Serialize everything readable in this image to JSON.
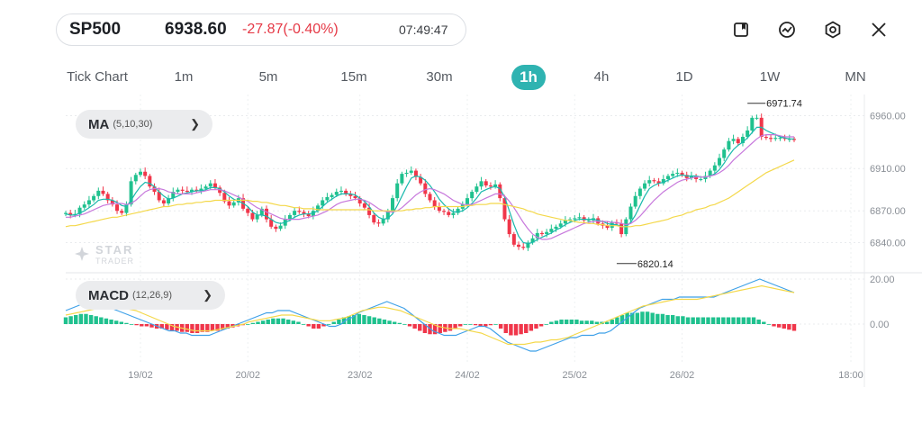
{
  "header": {
    "symbol": "SP500",
    "price": "6938.60",
    "change": "-27.87(-0.40%)",
    "time": "07:49:47"
  },
  "toolbar": {
    "icons": [
      "bookmark-icon",
      "trend-chart-icon",
      "settings-icon",
      "close-icon"
    ]
  },
  "timeframes": [
    "Tick Chart",
    "1m",
    "5m",
    "15m",
    "30m",
    "1h",
    "4h",
    "1D",
    "1W",
    "MN"
  ],
  "active_timeframe": "1h",
  "watermark": {
    "line1": "STAR",
    "line2": "TRADER"
  },
  "colors": {
    "accent": "#2fb3b1",
    "up": "#1fc18e",
    "down": "#f0364a"
  },
  "chart_data": [
    {
      "type": "candlestick",
      "indicator_label": "MA",
      "indicator_params": "(5,10,30)",
      "y_ticks": [
        "6960.00",
        "6910.00",
        "6870.00",
        "6840.00"
      ],
      "y_tick_values": [
        6960,
        6910,
        6870,
        6840
      ],
      "ylim": [
        6814,
        6980
      ],
      "x_tick_labels": [
        "19/02",
        "20/02",
        "23/02",
        "24/02",
        "25/02",
        "26/02",
        "18:00"
      ],
      "max_annotation": "6971.74",
      "min_annotation": "6820.14",
      "ma_colors": [
        "#19b9ad",
        "#c778dc",
        "#f4d84a"
      ],
      "closes": [
        6868,
        6866,
        6867,
        6873,
        6876,
        6880,
        6884,
        6889,
        6886,
        6880,
        6876,
        6870,
        6868,
        6876,
        6898,
        6904,
        6907,
        6903,
        6893,
        6888,
        6880,
        6877,
        6882,
        6888,
        6890,
        6889,
        6888,
        6890,
        6889,
        6891,
        6893,
        6896,
        6892,
        6887,
        6879,
        6875,
        6878,
        6882,
        6872,
        6868,
        6862,
        6866,
        6872,
        6862,
        6855,
        6853,
        6856,
        6862,
        6866,
        6870,
        6869,
        6867,
        6865,
        6870,
        6875,
        6880,
        6883,
        6885,
        6888,
        6889,
        6886,
        6884,
        6882,
        6877,
        6873,
        6866,
        6859,
        6858,
        6862,
        6870,
        6882,
        6896,
        6905,
        6906,
        6908,
        6902,
        6896,
        6886,
        6880,
        6874,
        6870,
        6869,
        6866,
        6868,
        6872,
        6876,
        6882,
        6888,
        6893,
        6898,
        6894,
        6893,
        6895,
        6882,
        6862,
        6848,
        6838,
        6836,
        6835,
        6840,
        6844,
        6849,
        6848,
        6850,
        6853,
        6855,
        6858,
        6861,
        6862,
        6863,
        6864,
        6861,
        6861,
        6863,
        6858,
        6856,
        6854,
        6859,
        6858,
        6848,
        6862,
        6874,
        6884,
        6891,
        6896,
        6899,
        6898,
        6896,
        6900,
        6903,
        6905,
        6906,
        6904,
        6901,
        6903,
        6900,
        6900,
        6903,
        6908,
        6913,
        6920,
        6928,
        6936,
        6938,
        6934,
        6940,
        6946,
        6958,
        6958,
        6940,
        6939,
        6938,
        6939,
        6939,
        6938,
        6938,
        6937
      ],
      "ma5": [
        6867,
        6866,
        6866,
        6868,
        6870,
        6873,
        6876,
        6880,
        6881,
        6881,
        6880,
        6878,
        6875,
        6874,
        6880,
        6887,
        6893,
        6897,
        6896,
        6893,
        6888,
        6884,
        6881,
        6882,
        6884,
        6886,
        6887,
        6888,
        6889,
        6889,
        6890,
        6892,
        6892,
        6891,
        6888,
        6884,
        6881,
        6879,
        6877,
        6874,
        6869,
        6866,
        6866,
        6865,
        6862,
        6859,
        6858,
        6859,
        6861,
        6864,
        6866,
        6867,
        6867,
        6868,
        6870,
        6874,
        6878,
        6881,
        6884,
        6886,
        6886,
        6886,
        6885,
        6882,
        6879,
        6874,
        6868,
        6864,
        6862,
        6863,
        6867,
        6875,
        6884,
        6893,
        6901,
        6903,
        6902,
        6899,
        6894,
        6888,
        6881,
        6876,
        6872,
        6869,
        6869,
        6870,
        6873,
        6877,
        6882,
        6888,
        6890,
        6892,
        6893,
        6891,
        6883,
        6870,
        6857,
        6846,
        6840,
        6839,
        6840,
        6843,
        6845,
        6847,
        6849,
        6852,
        6854,
        6857,
        6859,
        6861,
        6862,
        6862,
        6862,
        6862,
        6861,
        6860,
        6858,
        6857,
        6857,
        6855,
        6855,
        6859,
        6866,
        6875,
        6884,
        6891,
        6894,
        6896,
        6897,
        6899,
        6901,
        6903,
        6904,
        6903,
        6903,
        6903,
        6902,
        6902,
        6903,
        6905,
        6909,
        6915,
        6922,
        6928,
        6932,
        6935,
        6939,
        6944,
        6949,
        6949,
        6946,
        6944,
        6942,
        6940,
        6939,
        6938,
        6938
      ],
      "ma10": [
        6864,
        6864,
        6865,
        6866,
        6867,
        6869,
        6871,
        6873,
        6875,
        6876,
        6877,
        6877,
        6877,
        6876,
        6877,
        6880,
        6884,
        6888,
        6890,
        6891,
        6891,
        6890,
        6888,
        6887,
        6886,
        6886,
        6886,
        6886,
        6887,
        6888,
        6889,
        6890,
        6890,
        6890,
        6889,
        6887,
        6885,
        6883,
        6881,
        6879,
        6876,
        6873,
        6871,
        6869,
        6867,
        6865,
        6863,
        6862,
        6862,
        6862,
        6862,
        6863,
        6864,
        6865,
        6866,
        6868,
        6870,
        6873,
        6876,
        6878,
        6879,
        6880,
        6881,
        6881,
        6880,
        6878,
        6875,
        6872,
        6870,
        6869,
        6869,
        6870,
        6873,
        6877,
        6881,
        6885,
        6888,
        6890,
        6891,
        6890,
        6888,
        6886,
        6883,
        6880,
        6878,
        6876,
        6876,
        6876,
        6878,
        6880,
        6882,
        6884,
        6886,
        6886,
        6884,
        6879,
        6873,
        6866,
        6859,
        6853,
        6848,
        6845,
        6843,
        6843,
        6844,
        6846,
        6848,
        6850,
        6852,
        6854,
        6856,
        6858,
        6859,
        6860,
        6860,
        6860,
        6860,
        6859,
        6859,
        6858,
        6857,
        6858,
        6861,
        6865,
        6870,
        6875,
        6880,
        6884,
        6888,
        6891,
        6894,
        6897,
        6899,
        6900,
        6901,
        6902,
        6902,
        6902,
        6903,
        6904,
        6906,
        6909,
        6913,
        6918,
        6922,
        6926,
        6930,
        6934,
        6938,
        6941,
        6942,
        6942,
        6942,
        6941,
        6940,
        6940,
        6940
      ],
      "ma30": [
        6855,
        6856,
        6856,
        6857,
        6858,
        6859,
        6860,
        6861,
        6862,
        6863,
        6864,
        6864,
        6865,
        6866,
        6867,
        6868,
        6869,
        6870,
        6871,
        6872,
        6873,
        6874,
        6874,
        6875,
        6876,
        6876,
        6877,
        6877,
        6878,
        6878,
        6879,
        6879,
        6880,
        6880,
        6880,
        6880,
        6880,
        6880,
        6880,
        6880,
        6879,
        6879,
        6878,
        6878,
        6877,
        6876,
        6875,
        6875,
        6874,
        6873,
        6873,
        6872,
        6872,
        6872,
        6871,
        6871,
        6871,
        6871,
        6871,
        6871,
        6871,
        6871,
        6871,
        6871,
        6871,
        6871,
        6870,
        6870,
        6870,
        6870,
        6870,
        6870,
        6870,
        6871,
        6871,
        6872,
        6872,
        6873,
        6873,
        6874,
        6874,
        6874,
        6874,
        6874,
        6874,
        6874,
        6875,
        6875,
        6876,
        6876,
        6876,
        6877,
        6877,
        6877,
        6876,
        6875,
        6874,
        6873,
        6872,
        6870,
        6869,
        6867,
        6866,
        6865,
        6864,
        6863,
        6862,
        6861,
        6861,
        6860,
        6859,
        6859,
        6858,
        6858,
        6857,
        6857,
        6856,
        6856,
        6856,
        6855,
        6855,
        6855,
        6856,
        6856,
        6857,
        6858,
        6859,
        6860,
        6861,
        6862,
        6864,
        6865,
        6866,
        6868,
        6869,
        6871,
        6872,
        6873,
        6875,
        6876,
        6878,
        6880,
        6882,
        6885,
        6888,
        6891,
        6894,
        6897,
        6900,
        6903,
        6906,
        6908,
        6910,
        6912,
        6914,
        6916,
        6918
      ]
    },
    {
      "type": "histogram_line",
      "indicator_label": "MACD",
      "indicator_params": "(12,26,9)",
      "y_ticks": [
        "20.00",
        "0.00"
      ],
      "y_tick_values": [
        20,
        0
      ],
      "ylim": [
        -16,
        22
      ],
      "line_colors": [
        "#3fa1e8",
        "#f4d84a"
      ],
      "hist": [
        3,
        3.5,
        4,
        4.5,
        4.5,
        4,
        3.5,
        3,
        2.5,
        2,
        1.5,
        1,
        0.5,
        0,
        -0.5,
        -1,
        -1,
        -1.5,
        -2,
        -2,
        -2.5,
        -3,
        -3,
        -3.5,
        -3.5,
        -4,
        -4,
        -3.5,
        -3.5,
        -3,
        -3,
        -2.5,
        -2,
        -1.5,
        -1,
        -0.5,
        0,
        0.5,
        1,
        1.5,
        2,
        2.5,
        2.5,
        2.5,
        2,
        1.5,
        1,
        0,
        -1,
        -2,
        -2,
        -1,
        0,
        1,
        2,
        3,
        3.5,
        4,
        4.5,
        4,
        3.5,
        3,
        2.5,
        2,
        1.5,
        1,
        0.5,
        0,
        -1,
        -2,
        -3,
        -4,
        -4.5,
        -4.5,
        -4,
        -3.5,
        -3,
        -2,
        -1,
        0,
        0,
        -0.5,
        -1,
        -1,
        -0.5,
        0,
        -2,
        -4,
        -5,
        -5,
        -4.5,
        -4,
        -3,
        -2,
        -1,
        0,
        1,
        1.5,
        2,
        2,
        2,
        2,
        1.5,
        1.5,
        1.5,
        1,
        1,
        1,
        2,
        3,
        4,
        5,
        5,
        5,
        5.5,
        5.5,
        5,
        4.5,
        4.5,
        4,
        4,
        3.5,
        3.5,
        3,
        3,
        3,
        3,
        3,
        3,
        3,
        3,
        3,
        3,
        3,
        3,
        3,
        3,
        2,
        1,
        0,
        -1,
        -1.5,
        -2,
        -2.5,
        -3
      ],
      "macd": [
        6,
        7,
        8,
        9,
        10,
        10,
        9,
        8,
        7,
        6,
        5,
        4,
        3,
        2,
        1,
        0,
        -1,
        -2,
        -3,
        -3,
        -4,
        -4,
        -5,
        -5,
        -5,
        -5,
        -4,
        -3,
        -2,
        -1,
        0,
        1,
        2,
        3,
        4,
        5,
        5,
        6,
        6,
        6,
        5,
        4,
        3,
        2,
        1,
        0,
        -1,
        -1,
        0,
        2,
        3,
        5,
        6,
        7,
        8,
        9,
        10,
        9,
        8,
        7,
        5,
        3,
        1,
        -1,
        -3,
        -4,
        -5,
        -5,
        -5,
        -4,
        -3,
        -2,
        -1,
        -1,
        -2,
        -4,
        -6,
        -8,
        -9,
        -10,
        -11,
        -12,
        -12,
        -11,
        -10,
        -9,
        -8,
        -7,
        -6,
        -6,
        -5,
        -5,
        -5,
        -4,
        -4,
        -3,
        -1,
        1,
        3,
        5,
        7,
        8,
        9,
        10,
        11,
        11,
        11,
        12,
        12,
        12,
        12,
        12,
        12,
        12,
        13,
        14,
        15,
        16,
        17,
        18,
        19,
        20,
        19,
        18,
        17,
        16,
        15,
        14
      ],
      "signal": [
        4,
        4.5,
        5,
        5.5,
        6,
        6.5,
        7,
        7.5,
        8,
        8,
        7.5,
        7,
        6.5,
        6,
        5,
        4,
        3,
        2,
        1,
        0,
        -1,
        -1.5,
        -2,
        -2.5,
        -3,
        -3,
        -3,
        -3,
        -2.5,
        -2,
        -1.5,
        -1,
        -0.5,
        0,
        1,
        1.5,
        2,
        2.5,
        3,
        3.5,
        4,
        4,
        4,
        3.5,
        3,
        2.5,
        2,
        1.5,
        1.5,
        1.5,
        2,
        2.5,
        3,
        4,
        5,
        6,
        6.5,
        7,
        7.5,
        7.5,
        7,
        6.5,
        6,
        5,
        4,
        3,
        2,
        1,
        0,
        -1,
        -1.5,
        -2,
        -2,
        -2,
        -2.5,
        -3,
        -3.5,
        -4,
        -5,
        -6,
        -7,
        -8,
        -9,
        -9,
        -9,
        -9,
        -8.5,
        -8,
        -8,
        -7.5,
        -7,
        -7,
        -6.5,
        -6,
        -5,
        -4,
        -3,
        -2,
        -1,
        0,
        1,
        2,
        3,
        4,
        5,
        6,
        7,
        8,
        8.5,
        9,
        9.5,
        10,
        10.5,
        11,
        11,
        11,
        11,
        11,
        11.5,
        12,
        12.5,
        13,
        13.5,
        14,
        14.5,
        15,
        15.5,
        16,
        16.5,
        17,
        16.5,
        16,
        15.5,
        15,
        14.5,
        14
      ]
    }
  ]
}
